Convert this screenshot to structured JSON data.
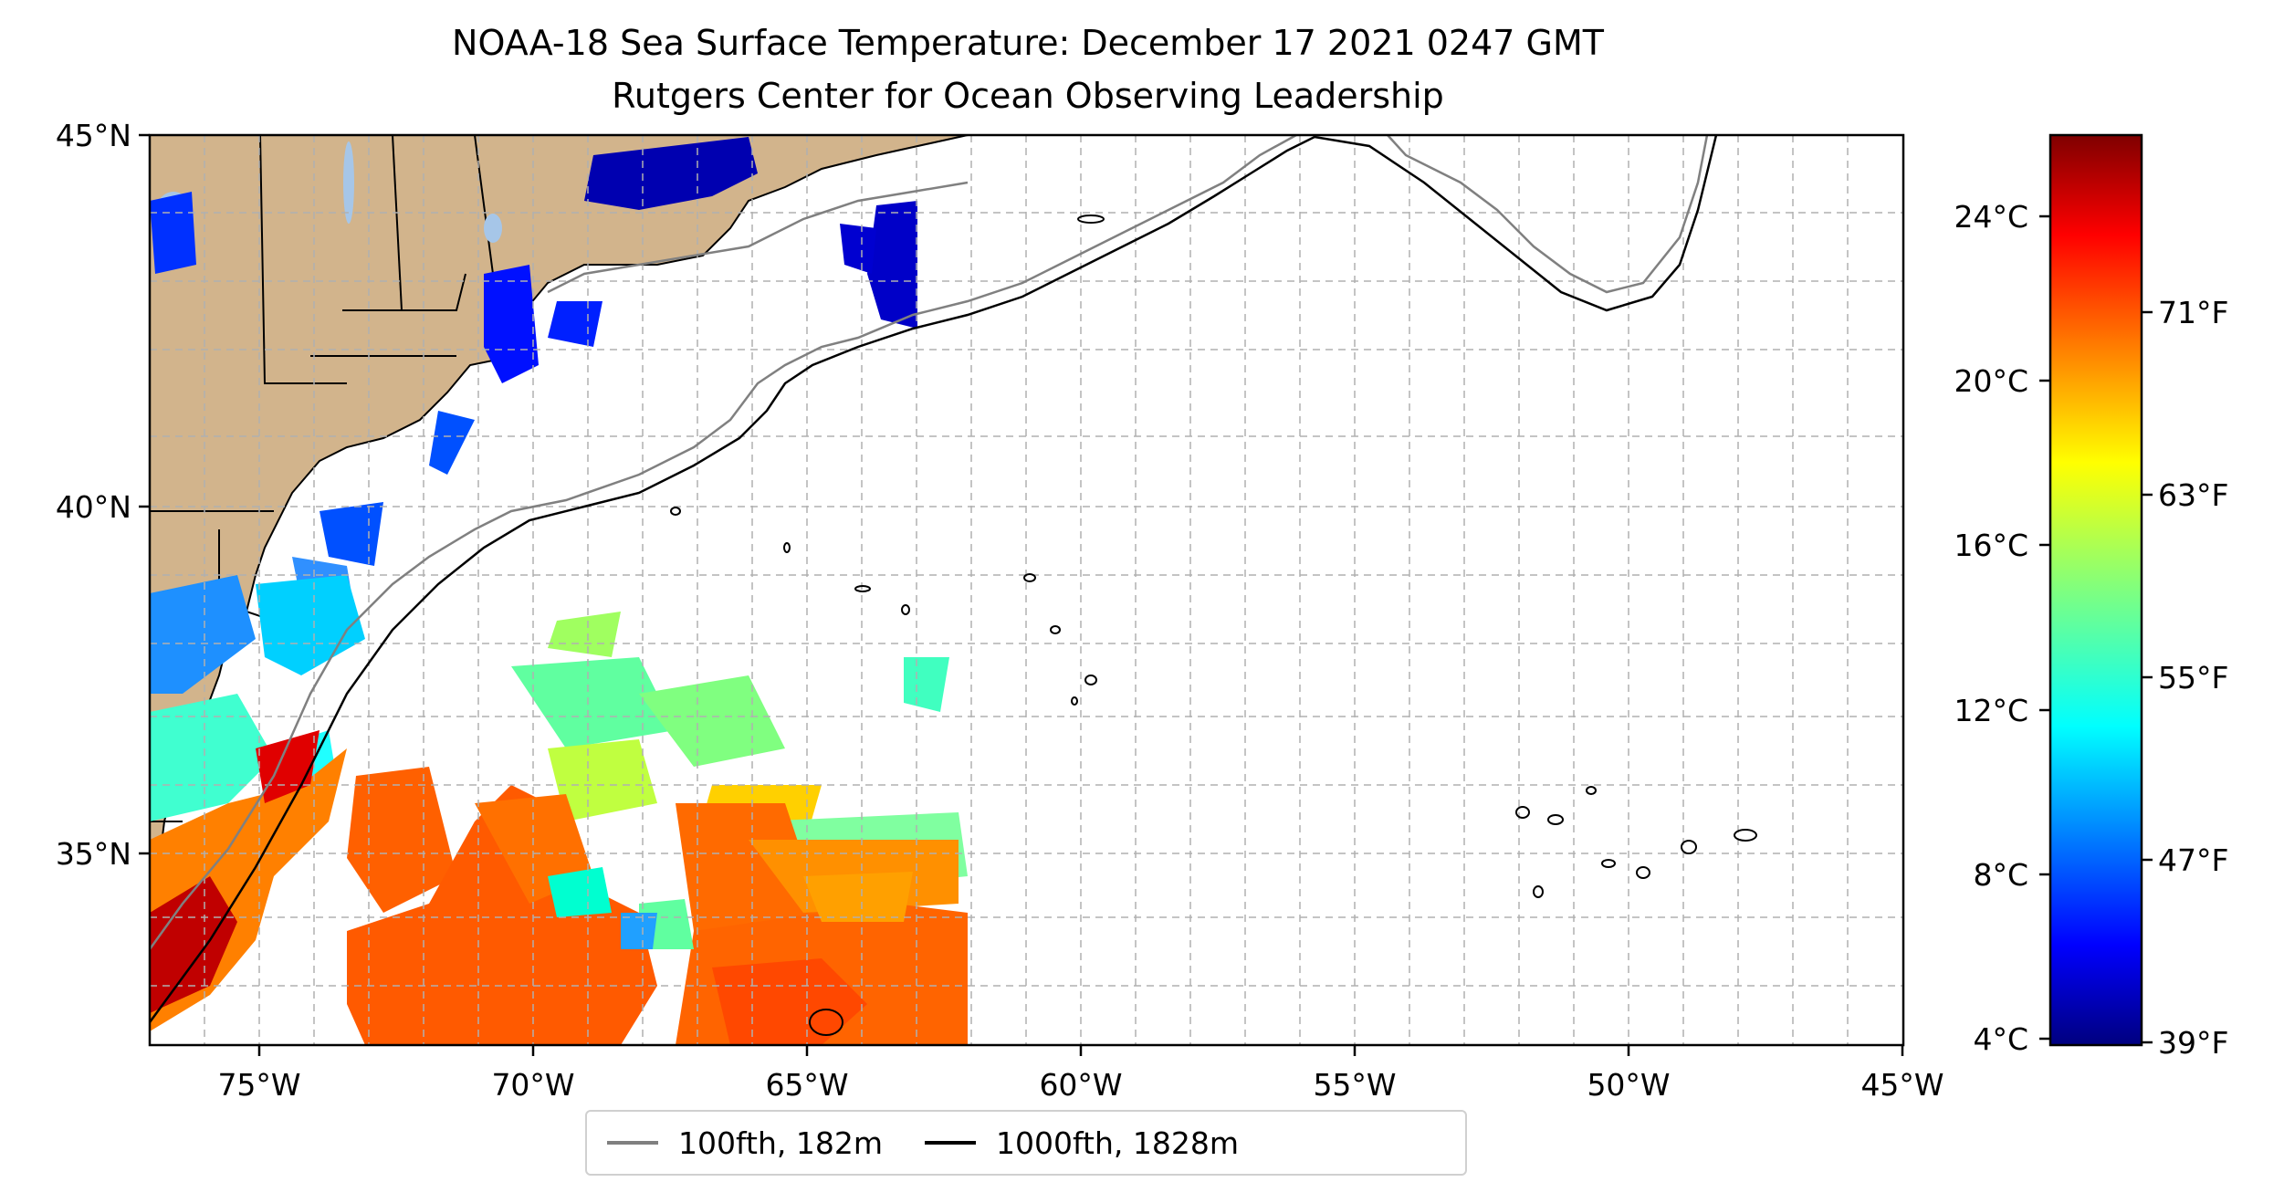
{
  "title": {
    "line1": "NOAA-18 Sea Surface Temperature: December 17 2021 0247 GMT",
    "line2": "Rutgers Center for Ocean Observing Leadership"
  },
  "map": {
    "lon_range": [
      -77,
      -45
    ],
    "lat_range": [
      32.3,
      45
    ],
    "lon_ticks": [
      "75°W",
      "70°W",
      "65°W",
      "60°W",
      "55°W",
      "50°W",
      "45°W"
    ],
    "lat_ticks": [
      "45°N",
      "40°N",
      "35°N"
    ],
    "land_color": "#d2b48c",
    "ocean_color": "#ffffff",
    "grid": "dashed"
  },
  "colorbar": {
    "colormap": "jet",
    "celsius_ticks": [
      "24°C",
      "20°C",
      "16°C",
      "12°C",
      "8°C",
      "4°C"
    ],
    "fahrenheit_ticks": [
      "71°F",
      "63°F",
      "55°F",
      "47°F",
      "39°F"
    ]
  },
  "legend": {
    "items": [
      {
        "label": "100fth, 182m",
        "color": "#808080"
      },
      {
        "label": "1000fth, 1828m",
        "color": "#000000"
      }
    ]
  }
}
